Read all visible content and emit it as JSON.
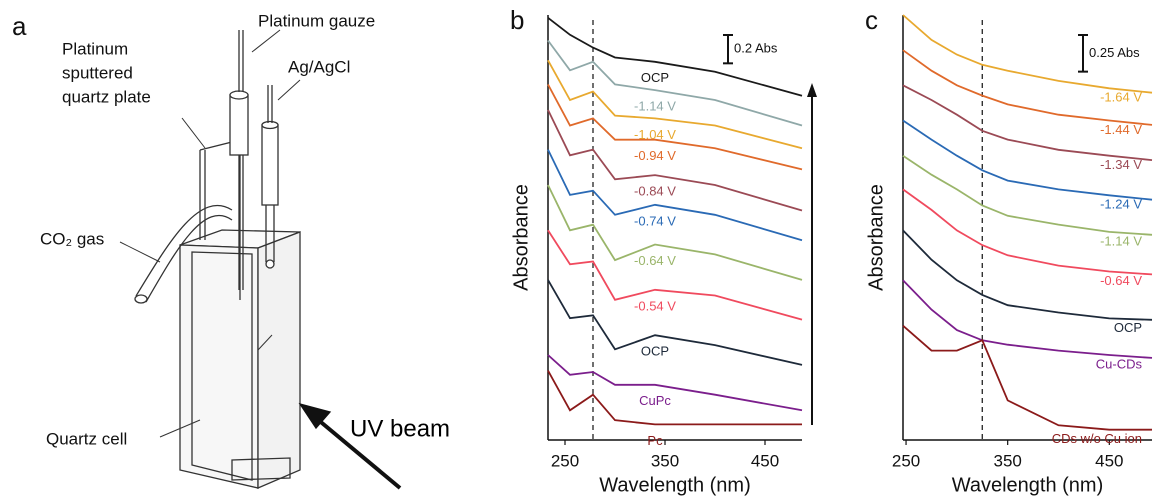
{
  "diagram": {
    "panel_label": "a",
    "labels": {
      "platinum_gauze": "Platinum gauze",
      "quartz_plate": [
        "Platinum",
        "sputtered",
        "quartz plate"
      ],
      "reference": "Ag/AgCl",
      "gas": "CO₂ gas",
      "cell": "Quartz cell",
      "beam": "UV beam"
    }
  },
  "chart_data": [
    {
      "type": "line",
      "panel_label": "b",
      "x_label": "Wavelength (nm)",
      "y_label": "Absorbance",
      "x": [
        233,
        255,
        278,
        300,
        340,
        400,
        487
      ],
      "xlim": [
        233,
        487
      ],
      "xticks": [
        250,
        350,
        450
      ],
      "ylim": [
        0,
        3.0
      ],
      "scale_bar": {
        "value": 0.2,
        "label": "0.2 Abs"
      },
      "reference_line_x": 278,
      "series": [
        {
          "name": "OCP",
          "color": "#1a1a1a",
          "values": [
            2.98,
            2.86,
            2.77,
            2.7,
            2.67,
            2.6,
            2.43
          ]
        },
        {
          "name": "-1.14 V",
          "color": "#8fa8a8",
          "values": [
            2.82,
            2.61,
            2.67,
            2.51,
            2.47,
            2.4,
            2.22
          ]
        },
        {
          "name": "-1.04 V",
          "color": "#e8a92f",
          "values": [
            2.68,
            2.4,
            2.46,
            2.29,
            2.27,
            2.22,
            2.06
          ]
        },
        {
          "name": "-0.94 V",
          "color": "#e06a2b",
          "values": [
            2.51,
            2.22,
            2.27,
            2.12,
            2.12,
            2.06,
            1.91
          ]
        },
        {
          "name": "-0.84 V",
          "color": "#9b4a55",
          "values": [
            2.33,
            2.01,
            2.05,
            1.84,
            1.87,
            1.8,
            1.62
          ]
        },
        {
          "name": "-0.74 V",
          "color": "#2a6ab5",
          "values": [
            2.05,
            1.73,
            1.76,
            1.59,
            1.66,
            1.59,
            1.41
          ]
        },
        {
          "name": "-0.64 V",
          "color": "#9ab56a",
          "values": [
            1.8,
            1.48,
            1.52,
            1.27,
            1.38,
            1.31,
            1.13
          ]
        },
        {
          "name": "-0.54 V",
          "color": "#f04a5e",
          "values": [
            1.48,
            1.24,
            1.26,
            0.99,
            1.06,
            1.02,
            0.85
          ]
        },
        {
          "name": "OCP",
          "color": "#1e2a3a",
          "values": [
            1.13,
            0.86,
            0.88,
            0.64,
            0.74,
            0.67,
            0.53
          ]
        },
        {
          "name": "CuPc",
          "color": "#7b1e8c",
          "values": [
            0.6,
            0.46,
            0.48,
            0.39,
            0.39,
            0.32,
            0.21
          ]
        },
        {
          "name": "Pc",
          "color": "#8b1a1a",
          "values": [
            0.49,
            0.21,
            0.32,
            0.14,
            0.11,
            0.11,
            0.11
          ]
        }
      ]
    },
    {
      "type": "line",
      "panel_label": "c",
      "x_label": "Wavelength (nm)",
      "y_label": "Absorbance",
      "x": [
        247,
        275,
        300,
        325,
        350,
        400,
        450,
        492
      ],
      "xlim": [
        247,
        492
      ],
      "xticks": [
        250,
        350,
        450
      ],
      "ylim": [
        0,
        2.9
      ],
      "scale_bar": {
        "value": 0.25,
        "label": "0.25 Abs"
      },
      "reference_line_x": 325,
      "series": [
        {
          "name": "-1.64 V",
          "color": "#e8a92f",
          "values": [
            2.9,
            2.73,
            2.63,
            2.56,
            2.52,
            2.45,
            2.4,
            2.37
          ]
        },
        {
          "name": "-1.44 V",
          "color": "#e06a2b",
          "values": [
            2.66,
            2.52,
            2.42,
            2.35,
            2.29,
            2.22,
            2.18,
            2.15
          ]
        },
        {
          "name": "-1.34 V",
          "color": "#9b4a55",
          "values": [
            2.42,
            2.32,
            2.22,
            2.11,
            2.05,
            1.98,
            1.94,
            1.91
          ]
        },
        {
          "name": "-1.24 V",
          "color": "#2a6ab5",
          "values": [
            2.18,
            2.05,
            1.94,
            1.84,
            1.77,
            1.71,
            1.67,
            1.64
          ]
        },
        {
          "name": "-1.14 V",
          "color": "#9ab56a",
          "values": [
            1.94,
            1.81,
            1.71,
            1.6,
            1.53,
            1.47,
            1.42,
            1.4
          ]
        },
        {
          "name": "-0.64 V",
          "color": "#f04a5e",
          "values": [
            1.71,
            1.57,
            1.43,
            1.33,
            1.26,
            1.19,
            1.15,
            1.13
          ]
        },
        {
          "name": "OCP",
          "color": "#1e2a3a",
          "values": [
            1.43,
            1.23,
            1.09,
            0.99,
            0.92,
            0.87,
            0.83,
            0.82
          ]
        },
        {
          "name": "Cu-CDs",
          "color": "#7b1e8c",
          "values": [
            1.09,
            0.89,
            0.75,
            0.68,
            0.65,
            0.61,
            0.58,
            0.56
          ]
        },
        {
          "name": "CDs w/o Cu ion",
          "color": "#8b1a1a",
          "values": [
            0.78,
            0.61,
            0.61,
            0.68,
            0.27,
            0.1,
            0.07,
            0.07
          ]
        }
      ]
    }
  ]
}
